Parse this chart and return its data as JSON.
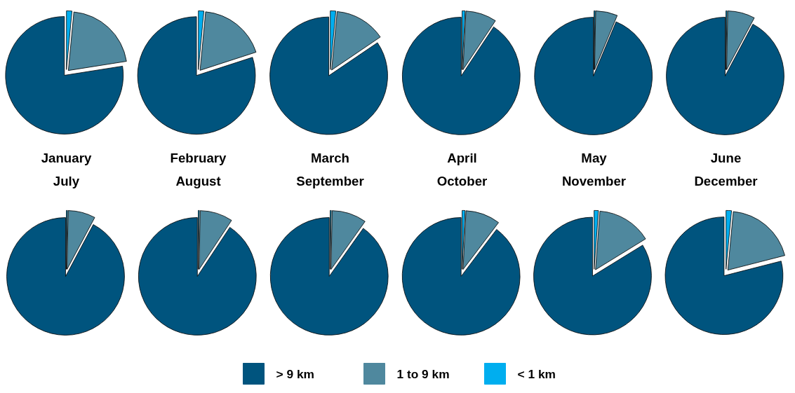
{
  "chart_data": [
    {
      "type": "pie",
      "title": "January",
      "values": [
        77.5,
        21,
        1.5
      ],
      "colors": [
        "#00547e",
        "#4f889e",
        "#00aeef"
      ]
    },
    {
      "type": "pie",
      "title": "February",
      "values": [
        80,
        18.5,
        1.5
      ],
      "colors": [
        "#00547e",
        "#4f889e",
        "#00aeef"
      ]
    },
    {
      "type": "pie",
      "title": "March",
      "values": [
        84.5,
        14,
        1.5
      ],
      "colors": [
        "#00547e",
        "#4f889e",
        "#00aeef"
      ]
    },
    {
      "type": "pie",
      "title": "April",
      "values": [
        90.7,
        8.5,
        0.8
      ],
      "colors": [
        "#00547e",
        "#4f889e",
        "#00aeef"
      ]
    },
    {
      "type": "pie",
      "title": "May",
      "values": [
        93.7,
        6,
        0.3
      ],
      "colors": [
        "#00547e",
        "#4f889e",
        "#00aeef"
      ]
    },
    {
      "type": "pie",
      "title": "June",
      "values": [
        92.2,
        7.5,
        0.3
      ],
      "colors": [
        "#00547e",
        "#4f889e",
        "#00aeef"
      ]
    },
    {
      "type": "pie",
      "title": "July",
      "values": [
        92.2,
        7.5,
        0.3
      ],
      "colors": [
        "#00547e",
        "#4f889e",
        "#00aeef"
      ]
    },
    {
      "type": "pie",
      "title": "August",
      "values": [
        90.7,
        9,
        0.3
      ],
      "colors": [
        "#00547e",
        "#4f889e",
        "#00aeef"
      ]
    },
    {
      "type": "pie",
      "title": "September",
      "values": [
        90.2,
        9.5,
        0.3
      ],
      "colors": [
        "#00547e",
        "#4f889e",
        "#00aeef"
      ]
    },
    {
      "type": "pie",
      "title": "October",
      "values": [
        89.7,
        9.5,
        0.8
      ],
      "colors": [
        "#00547e",
        "#4f889e",
        "#00aeef"
      ]
    },
    {
      "type": "pie",
      "title": "November",
      "values": [
        83.8,
        15,
        1.2
      ],
      "colors": [
        "#00547e",
        "#4f889e",
        "#00aeef"
      ]
    },
    {
      "type": "pie",
      "title": "December",
      "categories": [
        "> 9 km",
        "1 to 9 km",
        "< 1 km"
      ],
      "values": [
        79,
        19.5,
        1.5
      ],
      "colors": [
        "#00547e",
        "#4f889e",
        "#00aeef"
      ],
      "legend": "bottom"
    }
  ]
}
